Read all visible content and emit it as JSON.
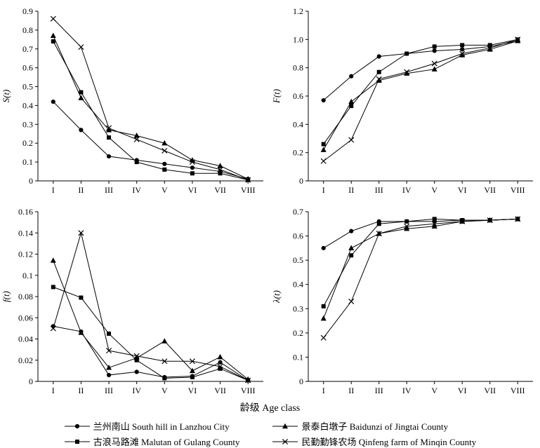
{
  "figure": {
    "xlabel": "龄级 Age class"
  },
  "chart_data": [
    {
      "type": "line",
      "panel": "survival",
      "ylabel": "S(t)",
      "categories": [
        "I",
        "II",
        "III",
        "IV",
        "V",
        "VI",
        "VII",
        "VIII"
      ],
      "ylim": [
        0,
        0.9
      ],
      "yticks": [
        0,
        0.1,
        0.2,
        0.3,
        0.4,
        0.5,
        0.6,
        0.7,
        0.8,
        0.9
      ],
      "ytick_labels": [
        "0",
        "0.1",
        "0.2",
        "0.3",
        "0.4",
        "0.5",
        "0.6",
        "0.7",
        "0.8",
        "0.9"
      ],
      "grid": false,
      "line_color": "#000000",
      "series": [
        {
          "name": "兰州南山 South hill in Lanzhou City",
          "marker": "circle",
          "values": [
            0.42,
            0.27,
            0.13,
            0.11,
            0.09,
            0.07,
            0.05,
            0.01
          ]
        },
        {
          "name": "古浪马路滩 Malutan of Gulang County",
          "marker": "square",
          "values": [
            0.74,
            0.47,
            0.23,
            0.1,
            0.06,
            0.04,
            0.04,
            0.005
          ]
        },
        {
          "name": "景泰白墩子 Baidunzi of Jingtai County",
          "marker": "triangle",
          "values": [
            0.77,
            0.44,
            0.27,
            0.24,
            0.2,
            0.11,
            0.08,
            0.01
          ]
        },
        {
          "name": "民勤勤锋农场 Qinfeng farm of Minqin County",
          "marker": "x",
          "values": [
            0.86,
            0.71,
            0.28,
            0.22,
            0.16,
            0.1,
            0.06,
            0.005
          ]
        }
      ]
    },
    {
      "type": "line",
      "panel": "cumulative-mortality",
      "ylabel": "F(t)",
      "categories": [
        "I",
        "II",
        "III",
        "IV",
        "V",
        "VI",
        "VII",
        "VIII"
      ],
      "ylim": [
        0,
        1.2
      ],
      "yticks": [
        0,
        0.2,
        0.4,
        0.6,
        0.8,
        1.0,
        1.2
      ],
      "ytick_labels": [
        "0",
        "0.2",
        "0.4",
        "0.6",
        "0.8",
        "1.0",
        "1.2"
      ],
      "grid": false,
      "line_color": "#000000",
      "series": [
        {
          "name": "兰州南山 South hill in Lanzhou City",
          "marker": "circle",
          "values": [
            0.57,
            0.74,
            0.88,
            0.9,
            0.92,
            0.93,
            0.95,
            0.99
          ]
        },
        {
          "name": "古浪马路滩 Malutan of Gulang County",
          "marker": "square",
          "values": [
            0.26,
            0.53,
            0.77,
            0.9,
            0.95,
            0.96,
            0.96,
            1.0
          ]
        },
        {
          "name": "景泰白墩子 Baidunzi of Jingtai County",
          "marker": "triangle",
          "values": [
            0.22,
            0.56,
            0.71,
            0.76,
            0.79,
            0.89,
            0.93,
            0.99
          ]
        },
        {
          "name": "民勤勤锋农场 Qinfeng farm of Minqin County",
          "marker": "x",
          "values": [
            0.14,
            0.29,
            0.72,
            0.77,
            0.83,
            0.9,
            0.94,
            1.0
          ]
        }
      ]
    },
    {
      "type": "line",
      "panel": "mortality-density",
      "ylabel": "f(t)",
      "categories": [
        "I",
        "II",
        "III",
        "IV",
        "V",
        "VI",
        "VII",
        "VIII"
      ],
      "ylim": [
        0,
        0.16
      ],
      "yticks": [
        0,
        0.02,
        0.04,
        0.06,
        0.08,
        0.1,
        0.12,
        0.14,
        0.16
      ],
      "ytick_labels": [
        "0",
        "0.02",
        "0.04",
        "0.06",
        "0.08",
        "0.1",
        "0.12",
        "0.14",
        "0.16"
      ],
      "grid": false,
      "line_color": "#000000",
      "series": [
        {
          "name": "兰州南山 South hill in Lanzhou City",
          "marker": "circle",
          "values": [
            0.052,
            0.047,
            0.006,
            0.009,
            0.004,
            0.005,
            0.018,
            0.001
          ]
        },
        {
          "name": "古浪马路滩 Malutan of Gulang County",
          "marker": "square",
          "values": [
            0.089,
            0.079,
            0.045,
            0.02,
            0.003,
            0.004,
            0.012,
            0.001
          ]
        },
        {
          "name": "景泰白墩子 Baidunzi of Jingtai County",
          "marker": "triangle",
          "values": [
            0.114,
            0.046,
            0.013,
            0.022,
            0.038,
            0.01,
            0.023,
            0.002
          ]
        },
        {
          "name": "民勤勤锋农场 Qinfeng farm of Minqin County",
          "marker": "x",
          "values": [
            0.05,
            0.14,
            0.029,
            0.024,
            0.019,
            0.019,
            0.014,
            0.001
          ]
        }
      ]
    },
    {
      "type": "line",
      "panel": "hazard-rate",
      "ylabel": "λ(t)",
      "categories": [
        "I",
        "II",
        "III",
        "IV",
        "V",
        "VI",
        "VII",
        "VIII"
      ],
      "ylim": [
        0,
        0.7
      ],
      "yticks": [
        0,
        0.1,
        0.2,
        0.3,
        0.4,
        0.5,
        0.6,
        0.7
      ],
      "ytick_labels": [
        "0",
        "0.1",
        "0.2",
        "0.3",
        "0.4",
        "0.5",
        "0.6",
        "0.7"
      ],
      "grid": false,
      "line_color": "#000000",
      "series": [
        {
          "name": "兰州南山 South hill in Lanzhou City",
          "marker": "circle",
          "values": [
            0.55,
            0.62,
            0.66,
            0.66,
            0.66,
            0.665,
            0.665,
            0.67
          ]
        },
        {
          "name": "古浪马路滩 Malutan of Gulang County",
          "marker": "square",
          "values": [
            0.31,
            0.52,
            0.65,
            0.66,
            0.67,
            0.665,
            0.665,
            0.67
          ]
        },
        {
          "name": "景泰白墩子 Baidunzi of Jingtai County",
          "marker": "triangle",
          "values": [
            0.26,
            0.55,
            0.61,
            0.63,
            0.64,
            0.66,
            0.665,
            0.67
          ]
        },
        {
          "name": "民勤勤锋农场 Qinfeng farm of Minqin County",
          "marker": "x",
          "values": [
            0.18,
            0.33,
            0.61,
            0.64,
            0.65,
            0.66,
            0.665,
            0.67
          ]
        }
      ]
    }
  ],
  "legend": {
    "items": [
      {
        "marker": "circle",
        "label": "兰州南山 South hill in Lanzhou City"
      },
      {
        "marker": "square",
        "label": "古浪马路滩 Malutan of Gulang County"
      },
      {
        "marker": "triangle",
        "label": "景泰白墩子 Baidunzi of Jingtai County"
      },
      {
        "marker": "x",
        "label": "民勤勤锋农场 Qinfeng farm of Minqin County"
      }
    ]
  },
  "colors": {
    "foreground": "#000000",
    "background": "#ffffff"
  }
}
